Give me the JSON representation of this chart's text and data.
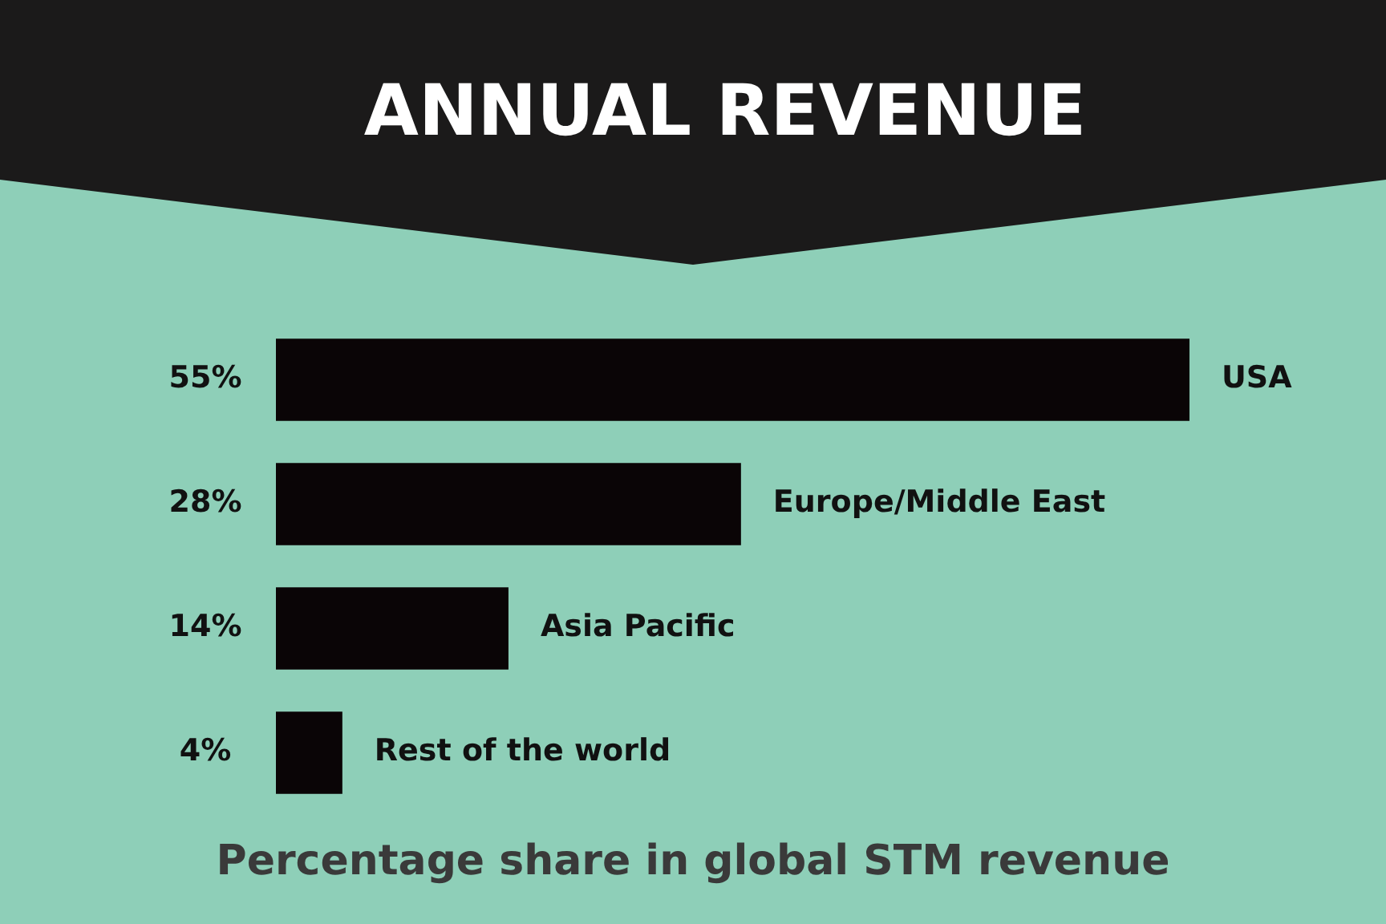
{
  "chart_data": {
    "type": "bar",
    "orientation": "horizontal",
    "title": "ANNUAL REVENUE",
    "annotations": [
      "Percentage share in global STM revenue"
    ],
    "categories": [
      "USA",
      "Europe/Middle East",
      "Asia Pacific",
      "Rest of the world"
    ],
    "values": [
      55,
      28,
      14,
      4
    ],
    "value_labels": [
      "55%",
      "28%",
      "14%",
      "4%"
    ],
    "color": "#0a0506"
  }
}
